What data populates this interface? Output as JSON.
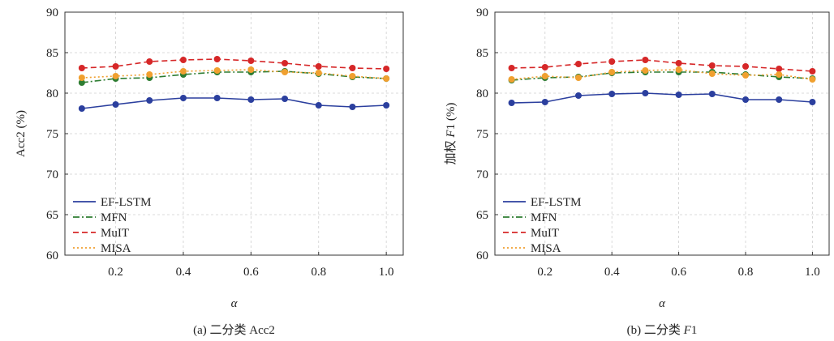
{
  "chart_data": [
    {
      "type": "line",
      "caption": "(a) 二分类 Acc2",
      "xlabel": "α",
      "ylabel": "Acc2 (%)",
      "xlim": [
        0.05,
        1.05
      ],
      "ylim": [
        60,
        90
      ],
      "x_ticks": [
        "0.2",
        "0.4",
        "0.6",
        "0.8",
        "1.0"
      ],
      "y_ticks": [
        "60",
        "65",
        "70",
        "75",
        "80",
        "85",
        "90"
      ],
      "grid": true,
      "legend_position": "lower-left",
      "x": [
        0.1,
        0.2,
        0.3,
        0.4,
        0.5,
        0.6,
        0.7,
        0.8,
        0.9,
        1.0
      ],
      "series": [
        {
          "name": "EF-LSTM",
          "color": "#2b3f9e",
          "dash": "solid",
          "values": [
            78.1,
            78.6,
            79.1,
            79.4,
            79.4,
            79.2,
            79.3,
            78.5,
            78.3,
            78.5
          ]
        },
        {
          "name": "MFN",
          "color": "#2e7d32",
          "dash": "dashdot",
          "values": [
            81.3,
            81.8,
            81.9,
            82.3,
            82.6,
            82.6,
            82.7,
            82.4,
            82.0,
            81.8
          ]
        },
        {
          "name": "MuIT",
          "color": "#d62728",
          "dash": "dashed",
          "values": [
            83.1,
            83.3,
            83.9,
            84.1,
            84.2,
            84.0,
            83.7,
            83.3,
            83.1,
            83.0
          ]
        },
        {
          "name": "MISA",
          "color": "#f0a030",
          "dash": "dotted",
          "values": [
            81.9,
            82.1,
            82.3,
            82.7,
            82.8,
            82.9,
            82.6,
            82.5,
            82.1,
            81.8
          ]
        }
      ]
    },
    {
      "type": "line",
      "caption_prefix": "(b) 二分类 ",
      "caption_metric": "F",
      "caption_suffix": "1",
      "xlabel": "α",
      "ylabel_prefix": "加权 ",
      "ylabel_metric": "F",
      "ylabel_suffix": "1 (%)",
      "xlim": [
        0.05,
        1.05
      ],
      "ylim": [
        60,
        90
      ],
      "x_ticks": [
        "0.2",
        "0.4",
        "0.6",
        "0.8",
        "1.0"
      ],
      "y_ticks": [
        "60",
        "65",
        "70",
        "75",
        "80",
        "85",
        "90"
      ],
      "grid": true,
      "legend_position": "lower-left",
      "x": [
        0.1,
        0.2,
        0.3,
        0.4,
        0.5,
        0.6,
        0.7,
        0.8,
        0.9,
        1.0
      ],
      "series": [
        {
          "name": "EF-LSTM",
          "color": "#2b3f9e",
          "dash": "solid",
          "values": [
            78.8,
            78.9,
            79.7,
            79.9,
            80.0,
            79.8,
            79.9,
            79.2,
            79.2,
            78.9
          ]
        },
        {
          "name": "MFN",
          "color": "#2e7d32",
          "dash": "dashdot",
          "values": [
            81.6,
            81.9,
            82.0,
            82.5,
            82.6,
            82.6,
            82.6,
            82.3,
            82.0,
            81.8
          ]
        },
        {
          "name": "MuIT",
          "color": "#d62728",
          "dash": "dashed",
          "values": [
            83.1,
            83.2,
            83.6,
            83.9,
            84.1,
            83.7,
            83.4,
            83.3,
            83.0,
            82.7
          ]
        },
        {
          "name": "MISA",
          "color": "#f0a030",
          "dash": "dotted",
          "values": [
            81.7,
            82.1,
            81.9,
            82.6,
            82.8,
            82.9,
            82.4,
            82.2,
            82.3,
            81.7
          ]
        }
      ]
    }
  ]
}
